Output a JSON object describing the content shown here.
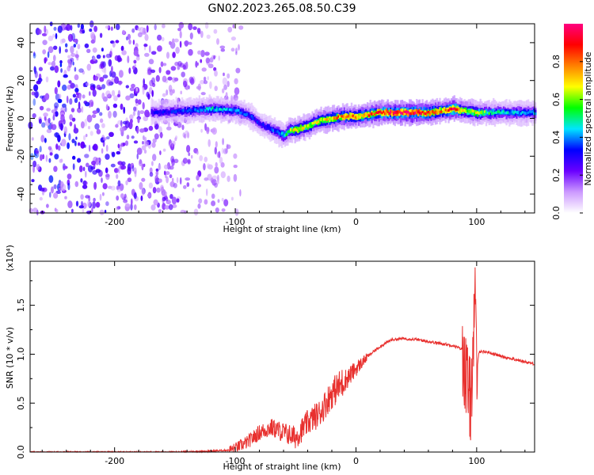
{
  "title": "GN02.2023.265.08.50.C39",
  "chart_data": [
    {
      "type": "heatmap",
      "xlabel": "Height of straight line (km)",
      "ylabel": "Frequency (Hz)",
      "xlim": [
        -270,
        148
      ],
      "ylim": [
        -50,
        50
      ],
      "x_ticks": [
        -200,
        -100,
        0,
        100
      ],
      "y_ticks": [
        -40,
        -20,
        0,
        20,
        40
      ],
      "colorbar": {
        "label": "Normalized spectral amplitude",
        "range": [
          0,
          1
        ],
        "ticks": [
          0.0,
          0.2,
          0.4,
          0.6,
          0.8
        ],
        "colormap": [
          "#ffffff",
          "#cc99ff",
          "#6a00ff",
          "#0000ff",
          "#00e5ff",
          "#00ff00",
          "#ffff00",
          "#ff8000",
          "#ff0000",
          "#ff0080"
        ]
      },
      "ridge": {
        "x": [
          -170,
          -140,
          -120,
          -100,
          -90,
          -80,
          -70,
          -60,
          -55,
          -50,
          -40,
          -30,
          -20,
          -10,
          0,
          20,
          40,
          60,
          70,
          80,
          90,
          100,
          110,
          120,
          148
        ],
        "y": [
          3,
          4,
          5,
          4,
          2,
          -3,
          -6,
          -9,
          -6,
          -6,
          -4,
          -1,
          0,
          1,
          1,
          3,
          3,
          3,
          4,
          5,
          4,
          3,
          3,
          3,
          3
        ],
        "amplitude": [
          0.3,
          0.35,
          0.45,
          0.4,
          0.35,
          0.3,
          0.35,
          0.45,
          0.6,
          0.7,
          0.65,
          0.65,
          0.75,
          0.8,
          0.75,
          0.85,
          0.95,
          0.85,
          0.75,
          0.9,
          0.6,
          0.65,
          0.5,
          0.45,
          0.4
        ]
      },
      "noise_region": {
        "x_from": -270,
        "x_to": -100
      }
    },
    {
      "type": "line",
      "xlabel": "Height of straight line (km)",
      "ylabel": "SNR (10 * v/v)",
      "scale_label": "(x10⁴)",
      "xlim": [
        -270,
        148
      ],
      "ylim": [
        0,
        1.95
      ],
      "x_ticks": [
        -200,
        -100,
        0,
        100
      ],
      "y_ticks": [
        0.0,
        0.5,
        1.0,
        1.5
      ],
      "color": "#e8302e",
      "series": [
        {
          "x": [
            -270,
            -200,
            -150,
            -120,
            -105,
            -100,
            -90,
            -80,
            -70,
            -60,
            -50,
            -40,
            -30,
            -20,
            -10,
            0,
            10,
            20,
            30,
            40,
            50,
            60,
            70,
            80,
            88,
            92,
            95,
            97,
            99,
            100,
            102,
            110,
            120,
            130,
            148
          ],
          "y": [
            0.0,
            0.0,
            0.0,
            0.01,
            0.02,
            0.04,
            0.1,
            0.2,
            0.25,
            0.2,
            0.15,
            0.3,
            0.4,
            0.6,
            0.72,
            0.85,
            0.98,
            1.08,
            1.15,
            1.16,
            1.15,
            1.13,
            1.11,
            1.09,
            1.05,
            0.7,
            0.5,
            1.1,
            1.5,
            0.8,
            1.03,
            1.02,
            0.98,
            0.95,
            0.9
          ]
        }
      ]
    }
  ]
}
